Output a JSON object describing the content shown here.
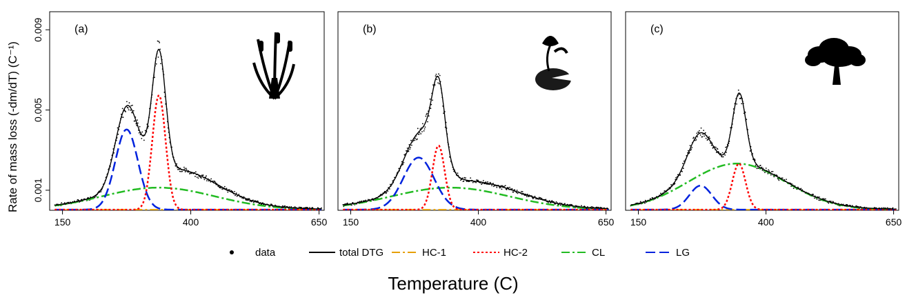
{
  "chart_data": {
    "type": "line",
    "xlabel": "Temperature (C)",
    "ylabel": "Rate of mass loss (-dm/dT) (C⁻¹)",
    "xlim": [
      125,
      660
    ],
    "ylim": [
      0,
      0.0099
    ],
    "x_ticks": [
      "150",
      "400",
      "650"
    ],
    "y_ticks": [
      "0.001",
      "0.005",
      "0.009"
    ],
    "legend": {
      "placement": "bottom",
      "entries": [
        {
          "key": "data",
          "label": "data",
          "color": "#000000",
          "style": "point"
        },
        {
          "key": "total",
          "label": "total DTG",
          "color": "#000000",
          "style": "solid"
        },
        {
          "key": "hc1",
          "label": "HC-1",
          "color": "#E69F00",
          "style": "dashdot"
        },
        {
          "key": "hc2",
          "label": "HC-2",
          "color": "#FF0000",
          "style": "dotted"
        },
        {
          "key": "cl",
          "label": "CL",
          "color": "#22BB22",
          "style": "dashdot"
        },
        {
          "key": "lg",
          "label": "LG",
          "color": "#0022DD",
          "style": "dashed"
        }
      ]
    },
    "panels": [
      {
        "tag": "(a)",
        "icon": "cattail-icon",
        "components": {
          "lg": {
            "peak": 0.004,
            "center": 275,
            "width": 22
          },
          "hc2": {
            "peak": 0.0057,
            "center": 338,
            "width": 13
          },
          "cl": {
            "peak": 0.0011,
            "center": 337,
            "width": 110
          },
          "hc1": {
            "peak": 0.0,
            "center": 300,
            "width": 20
          }
        },
        "extras": [
          {
            "peak": 0.0008,
            "center": 400,
            "width": 65
          },
          {
            "peak": 0.0002,
            "center": 360,
            "width": 40
          },
          {
            "peak": 0.0006,
            "center": 320,
            "width": 22
          }
        ]
      },
      {
        "tag": "(b)",
        "icon": "water-lily-icon",
        "components": {
          "lg": {
            "peak": 0.0026,
            "center": 283,
            "width": 30
          },
          "hc2": {
            "peak": 0.0032,
            "center": 322,
            "width": 12
          },
          "cl": {
            "peak": 0.0011,
            "center": 345,
            "width": 115
          },
          "hc1": {
            "peak": 0.0,
            "center": 300,
            "width": 20
          }
        },
        "extras": [
          {
            "peak": 0.001,
            "center": 320,
            "width": 20
          },
          {
            "peak": 0.0004,
            "center": 415,
            "width": 80
          }
        ]
      },
      {
        "tag": "(c)",
        "icon": "tree-icon",
        "components": {
          "lg": {
            "peak": 0.0012,
            "center": 272,
            "width": 22
          },
          "hc2": {
            "peak": 0.0023,
            "center": 347,
            "width": 13
          },
          "cl": {
            "peak": 0.0023,
            "center": 343,
            "width": 95
          },
          "hc1": {
            "peak": 0.0,
            "center": 300,
            "width": 20
          }
        },
        "extras": [
          {
            "peak": 0.0009,
            "center": 265,
            "width": 28
          },
          {
            "peak": 0.0012,
            "center": 349,
            "width": 13
          }
        ]
      }
    ]
  }
}
